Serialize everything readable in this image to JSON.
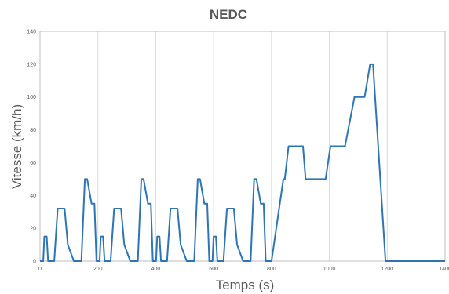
{
  "chart_data": {
    "type": "line",
    "title": "NEDC",
    "xlabel": "Temps (s)",
    "ylabel": "Vitesse (km/h)",
    "xlim": [
      0,
      1400
    ],
    "ylim": [
      0,
      140
    ],
    "x_ticks": [
      0,
      200,
      400,
      600,
      800,
      1000,
      1200,
      1400
    ],
    "y_ticks": [
      0,
      20,
      40,
      60,
      80,
      100,
      120,
      140
    ],
    "x_tick_labels": [
      "0",
      "200",
      "400",
      "600",
      "800",
      "1000",
      "1200",
      "1400"
    ],
    "y_tick_labels": [
      "0",
      "20",
      "40",
      "60",
      "80",
      "100",
      "120",
      "140"
    ],
    "grid": "vertical",
    "legend": "none",
    "colors": {
      "line": "#2e75b6",
      "grid": "#d9d9d9",
      "axis": "#bfbfbf",
      "text": "#595959"
    },
    "series": [
      {
        "points": [
          [
            0,
            0
          ],
          [
            11,
            0
          ],
          [
            15,
            15
          ],
          [
            23,
            15
          ],
          [
            28,
            0
          ],
          [
            49,
            0
          ],
          [
            61,
            32
          ],
          [
            85,
            32
          ],
          [
            96,
            10
          ],
          [
            117,
            0
          ],
          [
            143,
            0
          ],
          [
            155,
            50
          ],
          [
            163,
            50
          ],
          [
            178,
            35
          ],
          [
            188,
            35
          ],
          [
            195,
            0
          ],
          [
            206,
            0
          ],
          [
            210,
            15
          ],
          [
            218,
            15
          ],
          [
            223,
            0
          ],
          [
            244,
            0
          ],
          [
            256,
            32
          ],
          [
            280,
            32
          ],
          [
            291,
            10
          ],
          [
            312,
            0
          ],
          [
            338,
            0
          ],
          [
            350,
            50
          ],
          [
            358,
            50
          ],
          [
            373,
            35
          ],
          [
            383,
            35
          ],
          [
            390,
            0
          ],
          [
            401,
            0
          ],
          [
            405,
            15
          ],
          [
            413,
            15
          ],
          [
            418,
            0
          ],
          [
            439,
            0
          ],
          [
            451,
            32
          ],
          [
            475,
            32
          ],
          [
            486,
            10
          ],
          [
            507,
            0
          ],
          [
            533,
            0
          ],
          [
            545,
            50
          ],
          [
            553,
            50
          ],
          [
            568,
            35
          ],
          [
            578,
            35
          ],
          [
            585,
            0
          ],
          [
            596,
            0
          ],
          [
            600,
            15
          ],
          [
            608,
            15
          ],
          [
            613,
            0
          ],
          [
            634,
            0
          ],
          [
            646,
            32
          ],
          [
            670,
            32
          ],
          [
            681,
            10
          ],
          [
            702,
            0
          ],
          [
            728,
            0
          ],
          [
            740,
            50
          ],
          [
            748,
            50
          ],
          [
            763,
            35
          ],
          [
            773,
            35
          ],
          [
            780,
            0
          ],
          [
            800,
            0
          ],
          [
            841,
            50
          ],
          [
            846,
            50
          ],
          [
            859,
            70
          ],
          [
            909,
            70
          ],
          [
            918,
            50
          ],
          [
            987,
            50
          ],
          [
            1004,
            70
          ],
          [
            1054,
            70
          ],
          [
            1087,
            100
          ],
          [
            1122,
            100
          ],
          [
            1141,
            120
          ],
          [
            1151,
            120
          ],
          [
            1194,
            0
          ],
          [
            1400,
            0
          ]
        ]
      }
    ]
  }
}
